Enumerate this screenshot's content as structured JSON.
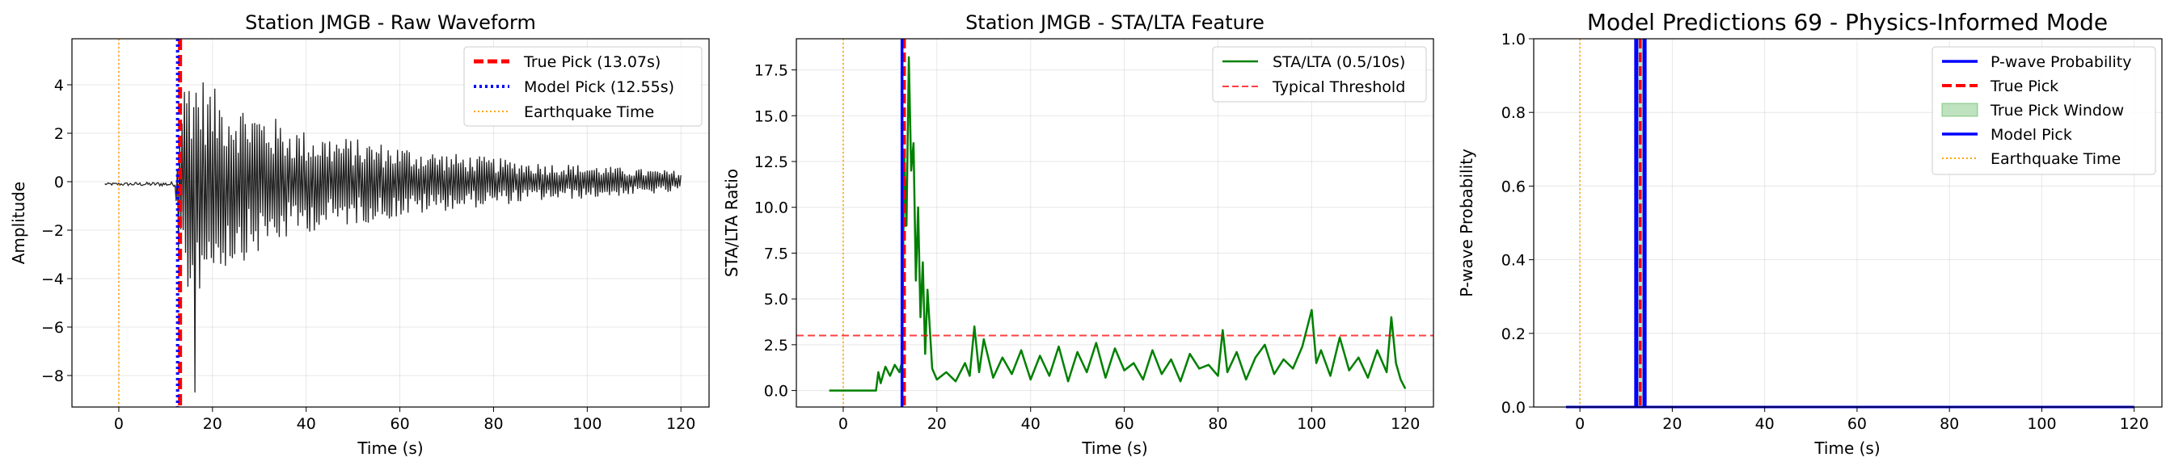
{
  "chart_data": [
    {
      "type": "line",
      "title": "Station JMGB - Raw Waveform",
      "xlabel": "Time (s)",
      "ylabel": "Amplitude",
      "xlim": [
        -10,
        126
      ],
      "ylim": [
        -9.3,
        5.9
      ],
      "xticks": [
        0,
        20,
        40,
        60,
        80,
        100,
        120
      ],
      "yticks": [
        -8,
        -6,
        -4,
        -2,
        0,
        2,
        4
      ],
      "grid": true,
      "legend_position": "top-right",
      "legend": [
        "True Pick (13.07s)",
        "Model Pick (12.55s)",
        "Earthquake Time"
      ],
      "markers": {
        "true_pick": 13.07,
        "model_pick": 12.55,
        "earthquake_time": 0
      },
      "colors": {
        "waveform": "#222222",
        "true_pick": "#ff0000",
        "model_pick": "#0000ff",
        "earthquake": "#ffa500"
      },
      "series": [
        {
          "name": "Waveform",
          "envelope": [
            [
              -3,
              0.05
            ],
            [
              12,
              0.1
            ],
            [
              13,
              3.5
            ],
            [
              15,
              5.0
            ],
            [
              17,
              4.6
            ],
            [
              20,
              3.9
            ],
            [
              25,
              3.4
            ],
            [
              30,
              3.0
            ],
            [
              35,
              2.5
            ],
            [
              40,
              2.1
            ],
            [
              50,
              1.8
            ],
            [
              60,
              1.5
            ],
            [
              70,
              1.2
            ],
            [
              80,
              1.0
            ],
            [
              90,
              0.8
            ],
            [
              100,
              0.7
            ],
            [
              110,
              0.55
            ],
            [
              120,
              0.45
            ]
          ],
          "min_spike": {
            "t": 16.2,
            "v": -8.7
          }
        }
      ]
    },
    {
      "type": "line",
      "title": "Station JMGB - STA/LTA Feature",
      "xlabel": "Time (s)",
      "ylabel": "STA/LTA Ratio",
      "xlim": [
        -10,
        126
      ],
      "ylim": [
        -0.9,
        19.2
      ],
      "xticks": [
        0,
        20,
        40,
        60,
        80,
        100,
        120
      ],
      "yticks": [
        0.0,
        2.5,
        5.0,
        7.5,
        10.0,
        12.5,
        15.0,
        17.5
      ],
      "grid": true,
      "legend_position": "top-right",
      "legend": [
        "STA/LTA (0.5/10s)",
        "Typical Threshold"
      ],
      "threshold": 3.0,
      "markers": {
        "true_pick": 13.07,
        "model_pick": 12.55,
        "earthquake_time": 0
      },
      "colors": {
        "stalta": "#008000",
        "threshold": "#ff0000",
        "true_pick": "#ff0000",
        "model_pick": "#0000ff",
        "earthquake": "#ffa500"
      },
      "series": [
        {
          "name": "STA/LTA (0.5/10s)",
          "x": [
            -3,
            7,
            7.5,
            8,
            9,
            10,
            11,
            12,
            12.6,
            13,
            13.5,
            14,
            14.5,
            15,
            15.5,
            16,
            16.5,
            17,
            17.5,
            18,
            19,
            20,
            22,
            24,
            26,
            27,
            28,
            29,
            30,
            32,
            34,
            36,
            38,
            40,
            42,
            44,
            46,
            48,
            50,
            52,
            54,
            56,
            58,
            60,
            62,
            64,
            66,
            68,
            70,
            72,
            74,
            76,
            78,
            80,
            81,
            82,
            84,
            86,
            88,
            90,
            92,
            94,
            96,
            98,
            100,
            101,
            102,
            104,
            106,
            108,
            110,
            112,
            114,
            116,
            117,
            118,
            119,
            120
          ],
          "y": [
            0.0,
            0.0,
            1.0,
            0.4,
            1.3,
            0.8,
            1.4,
            1.0,
            1.6,
            13.0,
            9.0,
            18.2,
            12.0,
            13.5,
            6.0,
            10.0,
            4.0,
            7.0,
            2.0,
            5.5,
            1.2,
            0.6,
            1.0,
            0.5,
            1.5,
            0.8,
            3.5,
            1.0,
            2.8,
            0.7,
            1.8,
            0.9,
            2.2,
            0.6,
            1.9,
            0.8,
            2.4,
            0.5,
            2.1,
            1.0,
            2.6,
            0.7,
            2.3,
            1.1,
            1.5,
            0.6,
            2.2,
            0.9,
            1.7,
            0.5,
            2.0,
            1.2,
            1.4,
            0.8,
            3.3,
            1.0,
            2.1,
            0.6,
            1.8,
            2.5,
            0.9,
            1.7,
            1.2,
            2.4,
            4.4,
            1.5,
            2.2,
            0.8,
            2.9,
            1.1,
            1.8,
            0.7,
            2.2,
            1.0,
            4.0,
            1.5,
            0.6,
            0.1
          ]
        }
      ]
    },
    {
      "type": "line",
      "title": "Model Predictions 69 - Physics-Informed Mode",
      "xlabel": "Time (s)",
      "ylabel": "P-wave Probability",
      "xlim": [
        -10,
        126
      ],
      "ylim": [
        0.0,
        1.0
      ],
      "xticks": [
        0,
        20,
        40,
        60,
        80,
        100,
        120
      ],
      "yticks": [
        0.0,
        0.2,
        0.4,
        0.6,
        0.8,
        1.0
      ],
      "grid": true,
      "legend_position": "top-right",
      "legend": [
        "P-wave Probability",
        "True Pick",
        "True Pick Window",
        "Model Pick",
        "Earthquake Time"
      ],
      "markers": {
        "true_pick": 13.07,
        "model_pick": 12.55,
        "earthquake_time": 0
      },
      "true_pick_window": [
        12.2,
        14.0
      ],
      "colors": {
        "probability": "#0000ff",
        "true_pick": "#ff0000",
        "window": "#2ca02c",
        "model_pick": "#0000ff",
        "earthquake": "#ffa500"
      },
      "series": [
        {
          "name": "P-wave Probability",
          "x": [
            -3,
            120
          ],
          "y": [
            0.0,
            0.0
          ]
        }
      ]
    }
  ]
}
